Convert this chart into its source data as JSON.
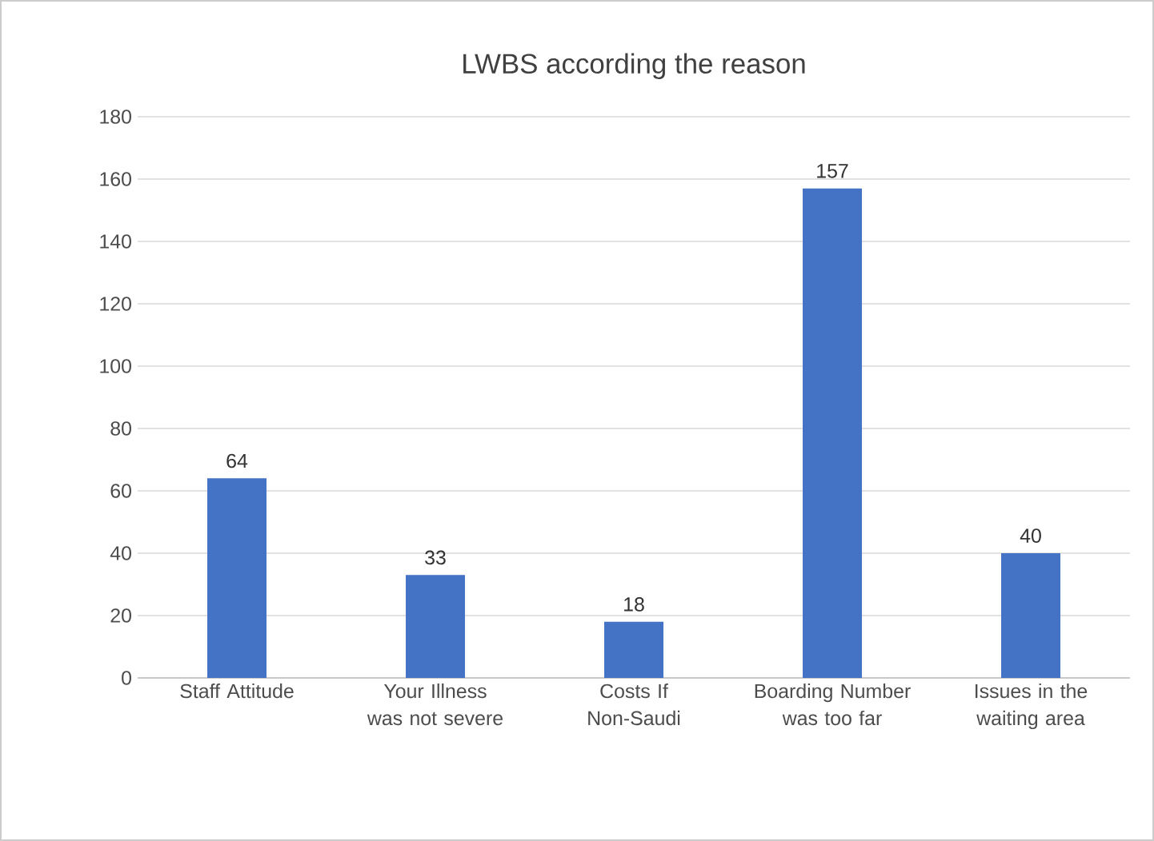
{
  "chart_data": {
    "type": "bar",
    "title": "LWBS according the reason",
    "categories": [
      "Staff Attitude",
      "Your Illness was not severe",
      "Costs If Non-Saudi",
      "Boarding Number was too far",
      "Issues in the waiting area"
    ],
    "values": [
      64,
      33,
      18,
      157,
      40
    ],
    "color": "#4472c4",
    "ylim": [
      0,
      180
    ],
    "yticks": [
      0,
      20,
      40,
      60,
      80,
      100,
      120,
      140,
      160,
      180
    ],
    "grid": "y",
    "data_labels": true
  }
}
